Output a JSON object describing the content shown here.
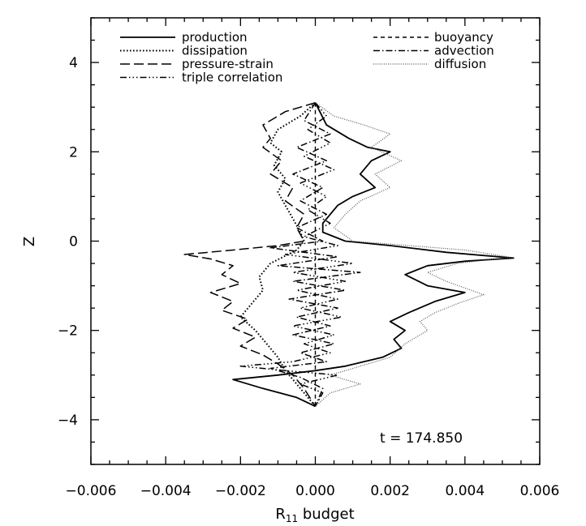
{
  "chart_data": {
    "type": "line",
    "title": "",
    "xlabel": {
      "main": "R",
      "sub": "11",
      "rest": " budget"
    },
    "ylabel": "Z",
    "xlim": [
      -0.006,
      0.006
    ],
    "ylim": [
      -5,
      5
    ],
    "xticks": [
      "−0.006",
      "−0.004",
      "−0.002",
      "0.000",
      "0.002",
      "0.004",
      "0.006"
    ],
    "yticks": [
      "−4",
      "−2",
      "0",
      "2",
      "4"
    ],
    "annotation": "t  =  174.850",
    "grid": false,
    "legend_placement": "top",
    "series": [
      {
        "name": "production",
        "style": "solid",
        "color": "#000000",
        "points": [
          [
            0,
            3.1
          ],
          [
            0.0003,
            2.6
          ],
          [
            0.0009,
            2.3
          ],
          [
            0.0014,
            2.1
          ],
          [
            0.002,
            2.0
          ],
          [
            0.0015,
            1.8
          ],
          [
            0.0012,
            1.5
          ],
          [
            0.0016,
            1.2
          ],
          [
            0.001,
            1.0
          ],
          [
            0.0006,
            0.8
          ],
          [
            0.0004,
            0.6
          ],
          [
            0.0002,
            0.4
          ],
          [
            0.0002,
            0.2
          ],
          [
            0.0008,
            0.0
          ],
          [
            0.002,
            -0.1
          ],
          [
            0.0035,
            -0.25
          ],
          [
            0.0053,
            -0.38
          ],
          [
            0.004,
            -0.45
          ],
          [
            0.003,
            -0.55
          ],
          [
            0.0024,
            -0.75
          ],
          [
            0.003,
            -1.0
          ],
          [
            0.004,
            -1.15
          ],
          [
            0.0032,
            -1.35
          ],
          [
            0.0025,
            -1.6
          ],
          [
            0.002,
            -1.8
          ],
          [
            0.0024,
            -2.0
          ],
          [
            0.0021,
            -2.2
          ],
          [
            0.0023,
            -2.4
          ],
          [
            0.0018,
            -2.6
          ],
          [
            0.0008,
            -2.8
          ],
          [
            0.0,
            -2.9
          ],
          [
            -0.001,
            -3.0
          ],
          [
            -0.0022,
            -3.1
          ],
          [
            -0.0014,
            -3.3
          ],
          [
            -0.0005,
            -3.5
          ],
          [
            0,
            -3.7
          ]
        ]
      },
      {
        "name": "dissipation",
        "style": "dotted",
        "color": "#000000",
        "points": [
          [
            0,
            3.1
          ],
          [
            -0.0004,
            2.8
          ],
          [
            -0.001,
            2.5
          ],
          [
            -0.0012,
            2.2
          ],
          [
            -0.0009,
            2.0
          ],
          [
            -0.0011,
            1.7
          ],
          [
            -0.0008,
            1.4
          ],
          [
            -0.001,
            1.1
          ],
          [
            -0.0008,
            0.8
          ],
          [
            -0.0006,
            0.5
          ],
          [
            -0.0004,
            0.2
          ],
          [
            -0.0003,
            0.0
          ],
          [
            -0.0005,
            -0.2
          ],
          [
            -0.0012,
            -0.5
          ],
          [
            -0.0015,
            -0.8
          ],
          [
            -0.0014,
            -1.1
          ],
          [
            -0.0017,
            -1.4
          ],
          [
            -0.002,
            -1.7
          ],
          [
            -0.0016,
            -2.0
          ],
          [
            -0.0013,
            -2.3
          ],
          [
            -0.001,
            -2.6
          ],
          [
            -0.0008,
            -2.9
          ],
          [
            -0.0005,
            -3.2
          ],
          [
            -0.0002,
            -3.5
          ],
          [
            0,
            -3.7
          ]
        ]
      },
      {
        "name": "pressure-strain",
        "style": "longdash",
        "color": "#000000",
        "points": [
          [
            0,
            3.1
          ],
          [
            -0.0008,
            2.9
          ],
          [
            -0.0014,
            2.6
          ],
          [
            -0.0012,
            2.3
          ],
          [
            -0.0014,
            2.1
          ],
          [
            -0.0009,
            1.8
          ],
          [
            -0.0012,
            1.5
          ],
          [
            -0.0006,
            1.2
          ],
          [
            -0.0008,
            0.9
          ],
          [
            -0.0003,
            0.6
          ],
          [
            -0.0005,
            0.3
          ],
          [
            -0.0003,
            0.0
          ],
          [
            -0.001,
            -0.1
          ],
          [
            -0.0022,
            -0.2
          ],
          [
            -0.0035,
            -0.3
          ],
          [
            -0.0028,
            -0.4
          ],
          [
            -0.0022,
            -0.55
          ],
          [
            -0.0025,
            -0.75
          ],
          [
            -0.002,
            -0.95
          ],
          [
            -0.0028,
            -1.15
          ],
          [
            -0.0022,
            -1.35
          ],
          [
            -0.0025,
            -1.55
          ],
          [
            -0.0018,
            -1.75
          ],
          [
            -0.0022,
            -1.95
          ],
          [
            -0.0016,
            -2.15
          ],
          [
            -0.002,
            -2.35
          ],
          [
            -0.0014,
            -2.55
          ],
          [
            -0.001,
            -2.75
          ],
          [
            -0.0006,
            -3.0
          ],
          [
            -0.0003,
            -3.3
          ],
          [
            0,
            -3.7
          ]
        ]
      },
      {
        "name": "triple correlation",
        "style": "dashdotdot",
        "color": "#000000",
        "points": [
          [
            0,
            3.1
          ],
          [
            0.0003,
            2.8
          ],
          [
            -0.0002,
            2.5
          ],
          [
            0.0004,
            2.2
          ],
          [
            -0.0003,
            1.9
          ],
          [
            0.0005,
            1.6
          ],
          [
            -0.0004,
            1.3
          ],
          [
            0.0003,
            1.0
          ],
          [
            -0.0002,
            0.7
          ],
          [
            0.0004,
            0.4
          ],
          [
            -0.0003,
            0.1
          ],
          [
            0.0006,
            -0.1
          ],
          [
            -0.0008,
            -0.3
          ],
          [
            0.001,
            -0.5
          ],
          [
            -0.0006,
            -0.7
          ],
          [
            0.0008,
            -0.9
          ],
          [
            -0.0005,
            -1.1
          ],
          [
            0.0006,
            -1.3
          ],
          [
            -0.0004,
            -1.5
          ],
          [
            0.0007,
            -1.7
          ],
          [
            -0.0006,
            -1.9
          ],
          [
            0.0005,
            -2.1
          ],
          [
            -0.0003,
            -2.3
          ],
          [
            0.0004,
            -2.5
          ],
          [
            -0.0006,
            -2.7
          ],
          [
            -0.002,
            -2.8
          ],
          [
            -0.0008,
            -2.9
          ],
          [
            0.0006,
            -3.0
          ],
          [
            -0.0004,
            -3.2
          ],
          [
            0.0002,
            -3.4
          ],
          [
            0,
            -3.7
          ]
        ]
      },
      {
        "name": "buoyancy",
        "style": "shortdash",
        "color": "#000000",
        "points": [
          [
            0,
            3.1
          ],
          [
            0,
            2.5
          ],
          [
            0,
            2.0
          ],
          [
            0,
            1.5
          ],
          [
            0,
            1.0
          ],
          [
            0,
            0.5
          ],
          [
            0,
            0.0
          ],
          [
            0,
            -0.5
          ],
          [
            0,
            -1.0
          ],
          [
            0,
            -1.5
          ],
          [
            0,
            -2.0
          ],
          [
            0,
            -2.5
          ],
          [
            0,
            -3.0
          ],
          [
            0,
            -3.7
          ]
        ]
      },
      {
        "name": "advection",
        "style": "dashdot",
        "color": "#000000",
        "points": [
          [
            0,
            3.1
          ],
          [
            -0.0003,
            2.7
          ],
          [
            0.0004,
            2.4
          ],
          [
            -0.0005,
            2.1
          ],
          [
            0.0003,
            1.8
          ],
          [
            -0.0006,
            1.5
          ],
          [
            0.0002,
            1.2
          ],
          [
            -0.0004,
            0.9
          ],
          [
            0.0003,
            0.6
          ],
          [
            -0.0005,
            0.3
          ],
          [
            0.0002,
            0.0
          ],
          [
            -0.0012,
            -0.15
          ],
          [
            0.0006,
            -0.35
          ],
          [
            -0.001,
            -0.55
          ],
          [
            0.0012,
            -0.7
          ],
          [
            -0.0006,
            -0.9
          ],
          [
            0.0008,
            -1.1
          ],
          [
            -0.0007,
            -1.3
          ],
          [
            0.0006,
            -1.5
          ],
          [
            -0.0005,
            -1.7
          ],
          [
            0.0004,
            -1.9
          ],
          [
            -0.0006,
            -2.1
          ],
          [
            0.0005,
            -2.3
          ],
          [
            -0.0004,
            -2.5
          ],
          [
            0.0003,
            -2.7
          ],
          [
            -0.0012,
            -2.85
          ],
          [
            -0.0004,
            -3.05
          ],
          [
            0.0002,
            -3.3
          ],
          [
            0,
            -3.7
          ]
        ]
      },
      {
        "name": "diffusion",
        "style": "finedot",
        "color": "#555555",
        "points": [
          [
            0,
            3.1
          ],
          [
            0.0005,
            2.8
          ],
          [
            0.0013,
            2.6
          ],
          [
            0.002,
            2.4
          ],
          [
            0.0015,
            2.1
          ],
          [
            0.0023,
            1.8
          ],
          [
            0.0016,
            1.5
          ],
          [
            0.002,
            1.2
          ],
          [
            0.0012,
            0.9
          ],
          [
            0.0008,
            0.6
          ],
          [
            0.0005,
            0.3
          ],
          [
            0.001,
            0.0
          ],
          [
            0.0025,
            -0.1
          ],
          [
            0.004,
            -0.2
          ],
          [
            0.0052,
            -0.36
          ],
          [
            0.0038,
            -0.5
          ],
          [
            0.003,
            -0.7
          ],
          [
            0.0035,
            -0.9
          ],
          [
            0.0045,
            -1.2
          ],
          [
            0.0038,
            -1.4
          ],
          [
            0.0032,
            -1.6
          ],
          [
            0.0028,
            -1.8
          ],
          [
            0.003,
            -2.0
          ],
          [
            0.0024,
            -2.3
          ],
          [
            0.002,
            -2.6
          ],
          [
            0.0012,
            -2.8
          ],
          [
            0.0004,
            -3.0
          ],
          [
            0.0012,
            -3.2
          ],
          [
            0.0004,
            -3.4
          ],
          [
            0,
            -3.7
          ]
        ]
      }
    ]
  }
}
